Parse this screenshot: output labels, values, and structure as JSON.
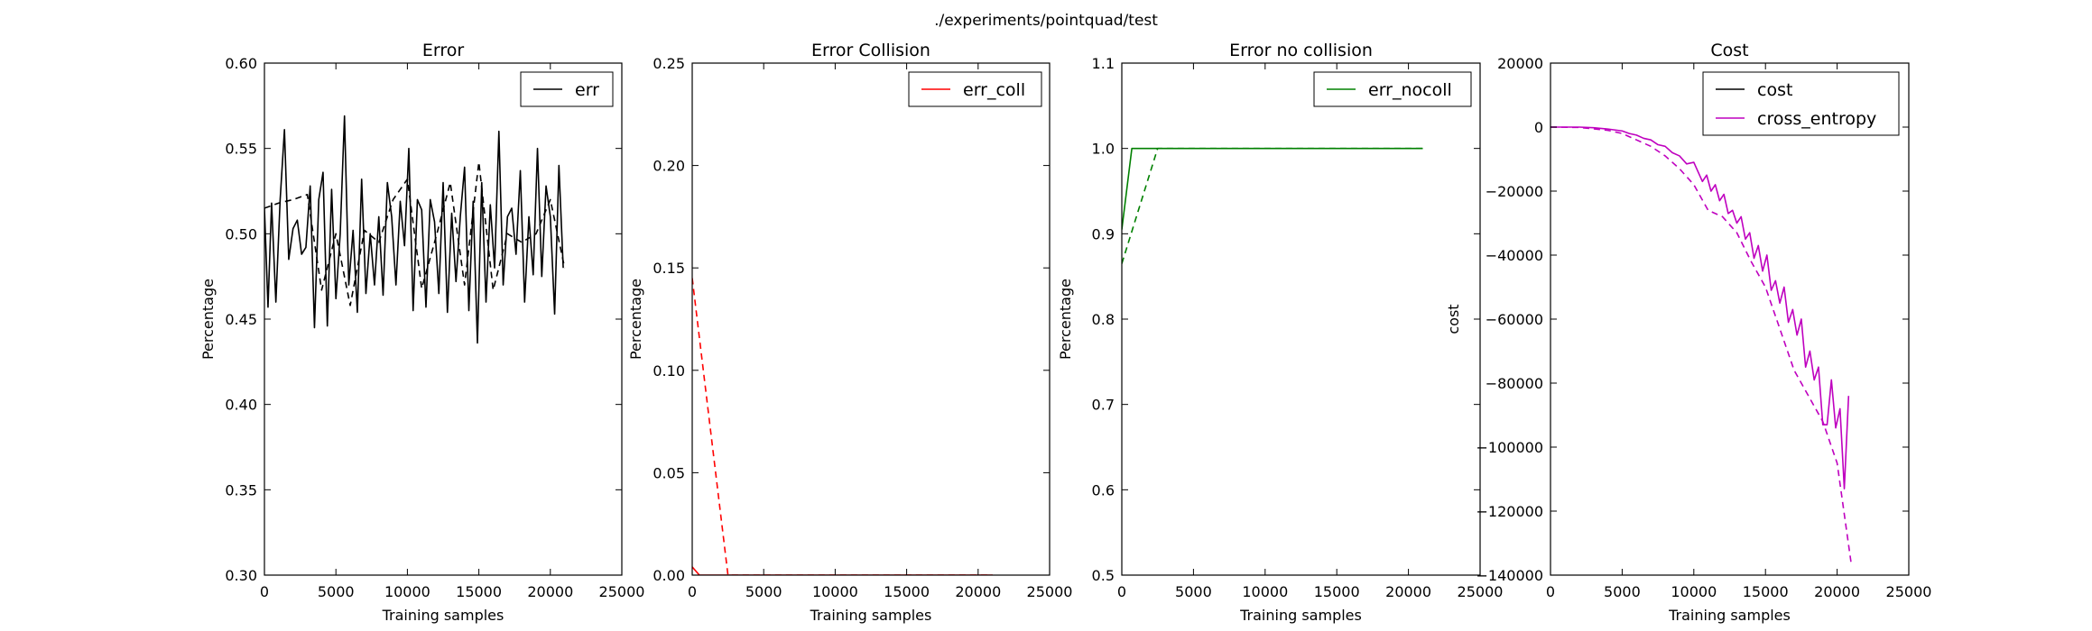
{
  "figure": {
    "suptitle": "./experiments/pointquad/test"
  },
  "chart_data": [
    {
      "type": "line",
      "title": "Error",
      "xlabel": "Training samples",
      "ylabel": "Percentage",
      "xlim": [
        0,
        25000
      ],
      "ylim": [
        0.3,
        0.6
      ],
      "xticks": [
        0,
        5000,
        10000,
        15000,
        20000,
        25000
      ],
      "yticks": [
        0.3,
        0.35,
        0.4,
        0.45,
        0.5,
        0.55,
        0.6
      ],
      "yticklabels": [
        "0.30",
        "0.35",
        "0.40",
        "0.45",
        "0.50",
        "0.55",
        "0.60"
      ],
      "legend": "top-right",
      "series": [
        {
          "name": "err",
          "color": "#000000",
          "style": "solid",
          "x": [
            0,
            250,
            500,
            800,
            1100,
            1400,
            1700,
            2000,
            2300,
            2600,
            2900,
            3200,
            3500,
            3800,
            4100,
            4400,
            4700,
            5000,
            5300,
            5600,
            5900,
            6200,
            6500,
            6800,
            7100,
            7400,
            7700,
            8000,
            8300,
            8600,
            8900,
            9200,
            9500,
            9800,
            10100,
            10400,
            10700,
            11000,
            11300,
            11600,
            11900,
            12200,
            12500,
            12800,
            13100,
            13400,
            13700,
            14000,
            14300,
            14600,
            14900,
            15200,
            15500,
            15800,
            16100,
            16400,
            16700,
            17000,
            17300,
            17600,
            17900,
            18200,
            18500,
            18800,
            19100,
            19400,
            19700,
            20000,
            20300,
            20600,
            20900
          ],
          "y": [
            0.515,
            0.457,
            0.518,
            0.46,
            0.52,
            0.561,
            0.485,
            0.503,
            0.508,
            0.488,
            0.492,
            0.528,
            0.445,
            0.52,
            0.536,
            0.446,
            0.526,
            0.462,
            0.5,
            0.569,
            0.47,
            0.502,
            0.454,
            0.532,
            0.465,
            0.5,
            0.47,
            0.51,
            0.464,
            0.53,
            0.51,
            0.47,
            0.519,
            0.493,
            0.55,
            0.455,
            0.52,
            0.514,
            0.457,
            0.52,
            0.507,
            0.465,
            0.53,
            0.454,
            0.512,
            0.472,
            0.51,
            0.539,
            0.455,
            0.519,
            0.436,
            0.53,
            0.46,
            0.517,
            0.48,
            0.56,
            0.47,
            0.51,
            0.515,
            0.488,
            0.537,
            0.46,
            0.51,
            0.476,
            0.55,
            0.475,
            0.528,
            0.51,
            0.453,
            0.54,
            0.48
          ]
        },
        {
          "name": "",
          "color": "#000000",
          "style": "dashed",
          "x": [
            0,
            1000,
            2000,
            3000,
            4000,
            5000,
            6000,
            7000,
            8000,
            9000,
            10000,
            11000,
            12000,
            13000,
            14000,
            15000,
            16000,
            17000,
            18000,
            19000,
            20000,
            21000
          ],
          "y": [
            0.515,
            0.518,
            0.52,
            0.523,
            0.467,
            0.5,
            0.458,
            0.502,
            0.495,
            0.52,
            0.532,
            0.468,
            0.498,
            0.53,
            0.47,
            0.542,
            0.467,
            0.5,
            0.495,
            0.5,
            0.52,
            0.48
          ]
        }
      ]
    },
    {
      "type": "line",
      "title": "Error Collision",
      "xlabel": "Training samples",
      "ylabel": "Percentage",
      "xlim": [
        0,
        25000
      ],
      "ylim": [
        0.0,
        0.25
      ],
      "xticks": [
        0,
        5000,
        10000,
        15000,
        20000,
        25000
      ],
      "yticks": [
        0.0,
        0.05,
        0.1,
        0.15,
        0.2,
        0.25
      ],
      "yticklabels": [
        "0.00",
        "0.05",
        "0.10",
        "0.15",
        "0.20",
        "0.25"
      ],
      "legend": "top-right",
      "series": [
        {
          "name": "err_coll",
          "color": "#ff0000",
          "style": "solid",
          "x": [
            0,
            500,
            1000,
            5000,
            10000,
            15000,
            20000,
            21000
          ],
          "y": [
            0.004,
            0.0,
            0.0,
            0.0,
            0.0,
            0.0,
            0.0,
            0.0
          ]
        },
        {
          "name": "",
          "color": "#ff0000",
          "style": "dashed",
          "x": [
            0,
            2500,
            5000,
            10000,
            15000,
            20000,
            21000
          ],
          "y": [
            0.145,
            0.0,
            0.0,
            0.0,
            0.0,
            0.0,
            0.0
          ]
        }
      ]
    },
    {
      "type": "line",
      "title": "Error no collision",
      "xlabel": "Training samples",
      "ylabel": "Percentage",
      "xlim": [
        0,
        25000
      ],
      "ylim": [
        0.5,
        1.1
      ],
      "xticks": [
        0,
        5000,
        10000,
        15000,
        20000,
        25000
      ],
      "yticks": [
        0.5,
        0.6,
        0.7,
        0.8,
        0.9,
        1.0,
        1.1
      ],
      "yticklabels": [
        "0.5",
        "0.6",
        "0.7",
        "0.8",
        "0.9",
        "1.0",
        "1.1"
      ],
      "legend": "top-right",
      "series": [
        {
          "name": "err_nocoll",
          "color": "#008000",
          "style": "solid",
          "x": [
            0,
            700,
            5000,
            10000,
            15000,
            20000,
            21000
          ],
          "y": [
            0.905,
            1.0,
            1.0,
            1.0,
            1.0,
            1.0,
            1.0
          ]
        },
        {
          "name": "",
          "color": "#008000",
          "style": "dashed",
          "x": [
            0,
            2500,
            5000,
            10000,
            15000,
            20000,
            21000
          ],
          "y": [
            0.865,
            1.0,
            1.0,
            1.0,
            1.0,
            1.0,
            1.0
          ]
        }
      ]
    },
    {
      "type": "line",
      "title": "Cost",
      "xlabel": "Training samples",
      "ylabel": "cost",
      "xlim": [
        0,
        25000
      ],
      "ylim": [
        -140000,
        20000
      ],
      "xticks": [
        0,
        5000,
        10000,
        15000,
        20000,
        25000
      ],
      "yticks": [
        -140000,
        -120000,
        -100000,
        -80000,
        -60000,
        -40000,
        -20000,
        0,
        20000
      ],
      "yticklabels": [
        "−140000",
        "−120000",
        "−100000",
        "−80000",
        "−60000",
        "−40000",
        "−20000",
        "0",
        "20000"
      ],
      "legend": "top-right",
      "series": [
        {
          "name": "cost",
          "color": "#000000",
          "style": "solid",
          "x": [],
          "y": []
        },
        {
          "name": "cross_entropy",
          "color": "#bf00bf",
          "style": "solid",
          "x": [
            0,
            1000,
            2000,
            3000,
            4000,
            5000,
            5500,
            6000,
            6500,
            7000,
            7500,
            8000,
            8500,
            9000,
            9500,
            10000,
            10300,
            10600,
            10900,
            11200,
            11500,
            11800,
            12100,
            12400,
            12700,
            13000,
            13300,
            13600,
            13900,
            14200,
            14500,
            14800,
            15100,
            15400,
            15700,
            16000,
            16300,
            16600,
            16900,
            17200,
            17500,
            17800,
            18100,
            18400,
            18700,
            19000,
            19300,
            19600,
            19900,
            20200,
            20500,
            20800
          ],
          "y": [
            0,
            0,
            0,
            -200,
            -600,
            -1200,
            -2000,
            -2500,
            -3500,
            -4000,
            -5500,
            -6000,
            -8000,
            -9000,
            -11500,
            -11000,
            -14000,
            -17000,
            -15000,
            -20000,
            -18000,
            -23000,
            -21000,
            -27000,
            -26000,
            -30000,
            -28000,
            -35000,
            -33000,
            -41000,
            -37000,
            -45000,
            -40000,
            -51000,
            -48000,
            -55000,
            -50000,
            -61000,
            -57000,
            -65000,
            -60000,
            -75000,
            -70000,
            -79000,
            -75000,
            -93000,
            -93000,
            -79000,
            -94000,
            -88000,
            -113000,
            -84000
          ]
        },
        {
          "name": "",
          "color": "#bf00bf",
          "style": "dashed",
          "x": [
            0,
            2000,
            4000,
            5000,
            6000,
            7000,
            8000,
            9000,
            10000,
            11000,
            12000,
            13000,
            14000,
            15000,
            16000,
            17000,
            18000,
            19000,
            20000,
            21000
          ],
          "y": [
            0,
            -100,
            -1000,
            -2000,
            -4000,
            -6000,
            -9000,
            -13000,
            -18000,
            -26000,
            -28000,
            -33000,
            -42000,
            -50000,
            -63000,
            -76000,
            -84000,
            -92000,
            -105000,
            -137000
          ]
        }
      ]
    }
  ]
}
